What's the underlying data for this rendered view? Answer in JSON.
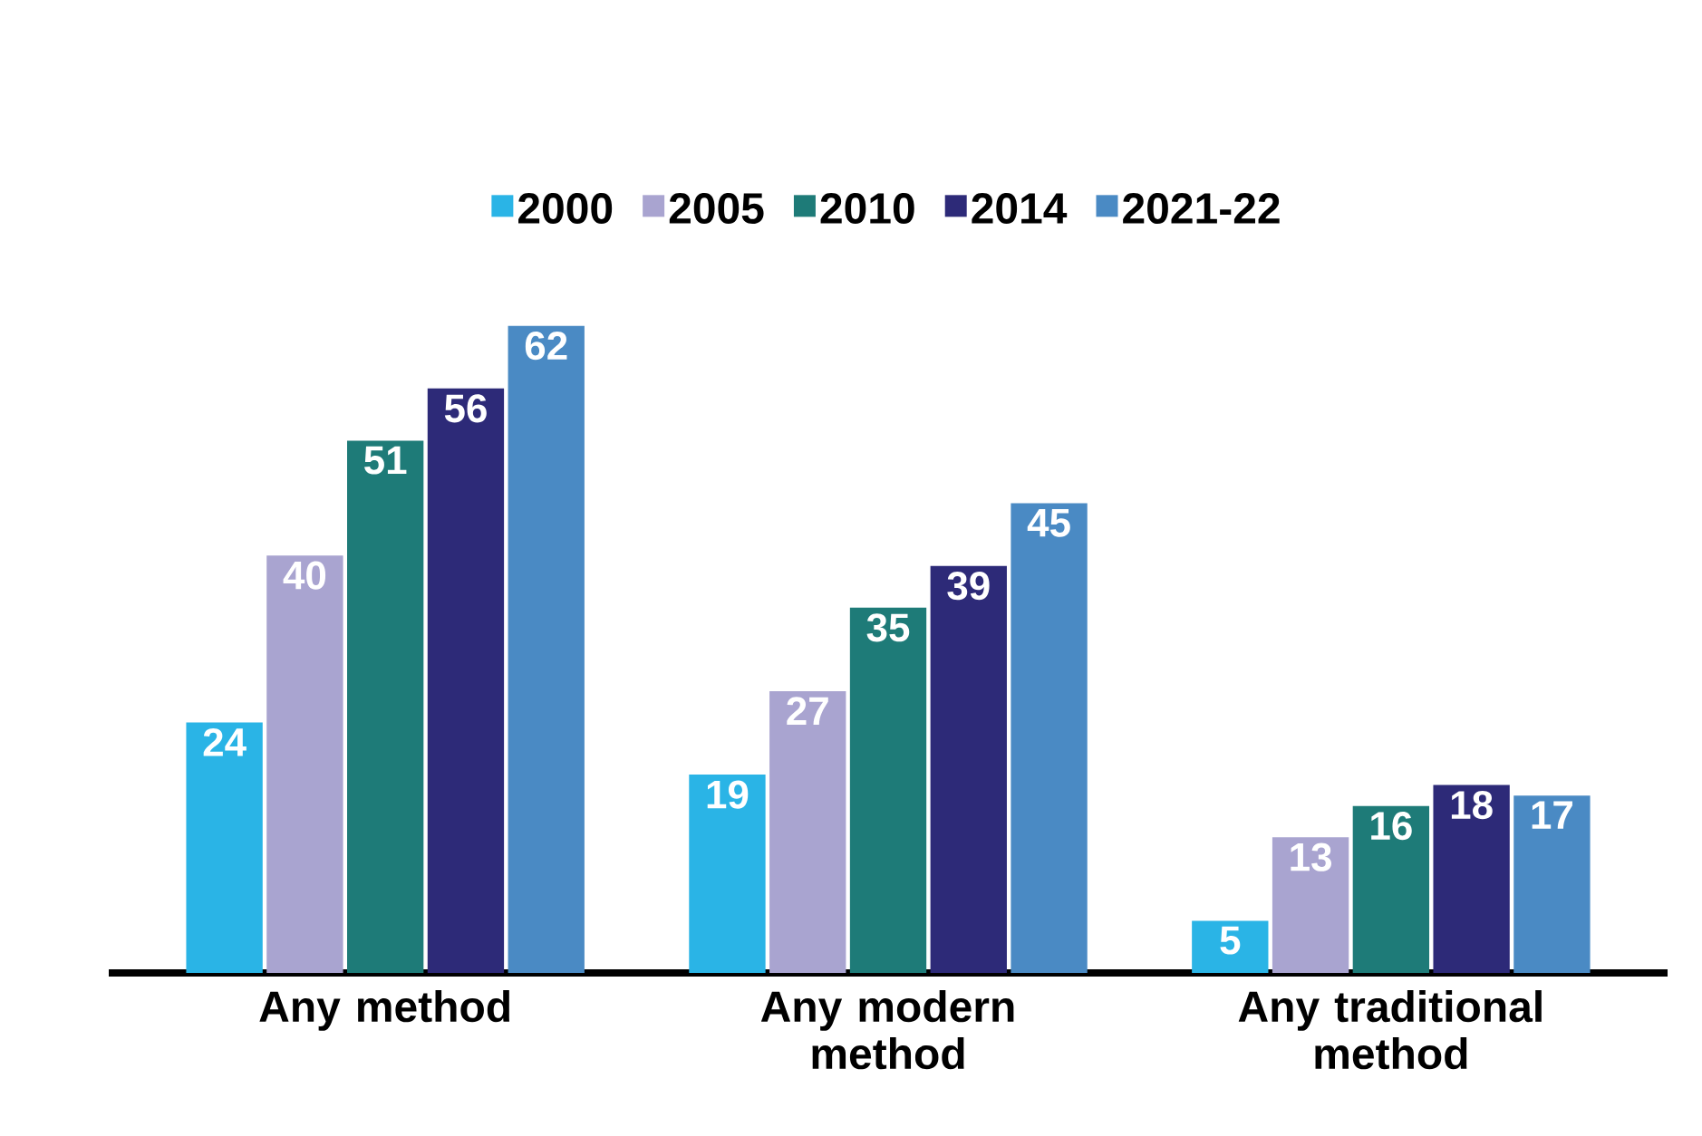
{
  "chart_data": {
    "type": "bar",
    "categories": [
      "Any method",
      "Any modern method",
      "Any traditional method"
    ],
    "series": [
      {
        "name": "2000",
        "color": "#2ab4e6",
        "values": [
          24,
          19,
          5
        ]
      },
      {
        "name": "2005",
        "color": "#a9a4d0",
        "values": [
          40,
          27,
          13
        ]
      },
      {
        "name": "2010",
        "color": "#1e7b78",
        "values": [
          51,
          35,
          16
        ]
      },
      {
        "name": "2014",
        "color": "#2d2a78",
        "values": [
          56,
          39,
          18
        ]
      },
      {
        "name": "2021-22",
        "color": "#4a8ac4",
        "values": [
          62,
          45,
          17
        ]
      }
    ],
    "data_labels": true,
    "legend": "top"
  }
}
